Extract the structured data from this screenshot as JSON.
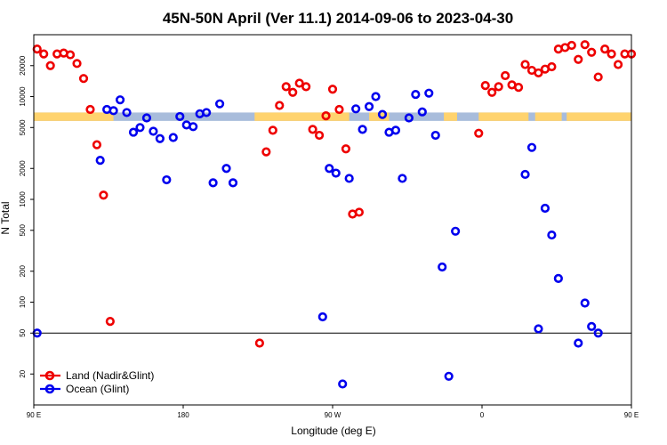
{
  "chart_data": {
    "type": "scatter",
    "title": "45N-50N April (Ver 11.1)   2014-09-06 to 2023-04-30",
    "xlabel": "Longitude (deg E)",
    "ylabel": "N Total",
    "x_scale": "linear",
    "y_scale": "log",
    "xlim": [
      90,
      450
    ],
    "ylim": [
      10,
      40000
    ],
    "x_ticks": [
      {
        "value": 90,
        "label": "90 E"
      },
      {
        "value": 180,
        "label": "180"
      },
      {
        "value": 270,
        "label": "90 W"
      },
      {
        "value": 360,
        "label": "0"
      },
      {
        "value": 450,
        "label": "90 E"
      },
      {
        "value": 540,
        "label": "180"
      }
    ],
    "y_ticks": [
      {
        "value": 20,
        "label": "20"
      },
      {
        "value": 50,
        "label": "50"
      },
      {
        "value": 100,
        "label": "100"
      },
      {
        "value": 200,
        "label": "200"
      },
      {
        "value": 500,
        "label": "500"
      },
      {
        "value": 1000,
        "label": "1000"
      },
      {
        "value": 2000,
        "label": "2000"
      },
      {
        "value": 5000,
        "label": "5000"
      },
      {
        "value": 10000,
        "label": "10000"
      },
      {
        "value": 20000,
        "label": "20000"
      }
    ],
    "reference_line_y": 50,
    "land_mask_band": {
      "y_range": [
        5800,
        7000
      ],
      "land_color": "#FFD36E",
      "ocean_color": "#A8BCDB",
      "land_intervals": [
        [
          90,
          138
        ],
        [
          223,
          280
        ],
        [
          292,
          304
        ],
        [
          337,
          345
        ],
        [
          358,
          388
        ],
        [
          392,
          408
        ],
        [
          411,
          478
        ],
        [
          494,
          540
        ]
      ]
    },
    "legend": {
      "position": "bottom-left"
    },
    "series": [
      {
        "name": "Land (Nadir&Glint)",
        "color": "#EE0000",
        "points": [
          [
            92,
            29000
          ],
          [
            96,
            26000
          ],
          [
            100,
            20000
          ],
          [
            104,
            26000
          ],
          [
            108,
            26500
          ],
          [
            112,
            25500
          ],
          [
            116,
            21000
          ],
          [
            120,
            15000
          ],
          [
            124,
            7500
          ],
          [
            128,
            3400
          ],
          [
            132,
            1100
          ],
          [
            136,
            65
          ],
          [
            226,
            40
          ],
          [
            230,
            2900
          ],
          [
            234,
            4700
          ],
          [
            238,
            8200
          ],
          [
            242,
            12500
          ],
          [
            246,
            11000
          ],
          [
            250,
            13500
          ],
          [
            254,
            12500
          ],
          [
            258,
            4800
          ],
          [
            262,
            4200
          ],
          [
            266,
            6500
          ],
          [
            270,
            11800
          ],
          [
            274,
            7500
          ],
          [
            278,
            3100
          ],
          [
            282,
            720
          ],
          [
            286,
            750
          ],
          [
            358,
            4400
          ],
          [
            362,
            12800
          ],
          [
            366,
            11000
          ],
          [
            370,
            12500
          ],
          [
            374,
            16000
          ],
          [
            378,
            13000
          ],
          [
            382,
            12300
          ],
          [
            386,
            20500
          ],
          [
            390,
            18000
          ],
          [
            394,
            17000
          ],
          [
            398,
            18500
          ],
          [
            402,
            19500
          ],
          [
            406,
            29000
          ],
          [
            410,
            30000
          ],
          [
            414,
            31500
          ],
          [
            418,
            23000
          ],
          [
            422,
            32000
          ],
          [
            426,
            27000
          ],
          [
            430,
            15500
          ],
          [
            434,
            29000
          ],
          [
            438,
            26000
          ],
          [
            442,
            20500
          ],
          [
            446,
            26000
          ],
          [
            450,
            26000
          ]
        ]
      },
      {
        "name": "Ocean (Glint)",
        "color": "#0000EE",
        "points": [
          [
            92,
            50
          ],
          [
            130,
            2400
          ],
          [
            134,
            7500
          ],
          [
            138,
            7300
          ],
          [
            142,
            9300
          ],
          [
            146,
            7000
          ],
          [
            150,
            4500
          ],
          [
            154,
            5000
          ],
          [
            158,
            6200
          ],
          [
            162,
            4600
          ],
          [
            166,
            3900
          ],
          [
            170,
            1550
          ],
          [
            174,
            4000
          ],
          [
            178,
            6400
          ],
          [
            182,
            5300
          ],
          [
            186,
            5100
          ],
          [
            190,
            6800
          ],
          [
            194,
            7000
          ],
          [
            198,
            1450
          ],
          [
            202,
            8500
          ],
          [
            206,
            2000
          ],
          [
            210,
            1450
          ],
          [
            264,
            72
          ],
          [
            268,
            2000
          ],
          [
            272,
            1800
          ],
          [
            276,
            16
          ],
          [
            280,
            1600
          ],
          [
            284,
            7600
          ],
          [
            288,
            4800
          ],
          [
            292,
            8000
          ],
          [
            296,
            10000
          ],
          [
            300,
            6700
          ],
          [
            304,
            4500
          ],
          [
            308,
            4700
          ],
          [
            312,
            1600
          ],
          [
            316,
            6200
          ],
          [
            320,
            10500
          ],
          [
            324,
            7100
          ],
          [
            328,
            10800
          ],
          [
            332,
            4200
          ],
          [
            336,
            220
          ],
          [
            340,
            19
          ],
          [
            344,
            490
          ],
          [
            386,
            1750
          ],
          [
            390,
            3200
          ],
          [
            394,
            55
          ],
          [
            398,
            820
          ],
          [
            402,
            450
          ],
          [
            406,
            170
          ],
          [
            418,
            40
          ],
          [
            422,
            98
          ],
          [
            426,
            58
          ],
          [
            430,
            50
          ]
        ]
      }
    ]
  }
}
